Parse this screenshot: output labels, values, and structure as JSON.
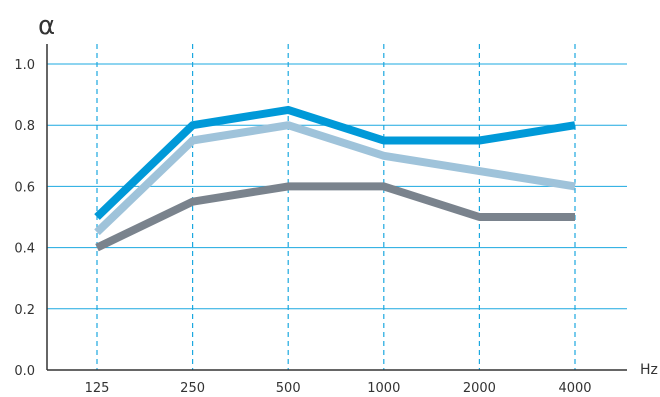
{
  "chart_data": {
    "type": "line",
    "title": "",
    "xlabel": "Hz",
    "ylabel": "α",
    "categories": [
      "125",
      "250",
      "500",
      "1000",
      "2000",
      "4000"
    ],
    "ylim": [
      0.0,
      1.0
    ],
    "yticks": [
      "0.0",
      "0.2",
      "0.4",
      "0.6",
      "0.8",
      "1.0"
    ],
    "grid": "horizontal solid lines, vertical dashed lines",
    "series": [
      {
        "values": [
          0.5,
          0.8,
          0.85,
          0.75,
          0.75,
          0.8
        ],
        "color": "#0099d8"
      },
      {
        "values": [
          0.45,
          0.75,
          0.8,
          0.7,
          0.65,
          0.6
        ],
        "color": "#9fc3da"
      },
      {
        "values": [
          0.4,
          0.55,
          0.6,
          0.6,
          0.5,
          0.5
        ],
        "color": "#7a838d"
      }
    ],
    "colors": {
      "grid": "#1ba8e0",
      "axis": "#333333"
    }
  }
}
